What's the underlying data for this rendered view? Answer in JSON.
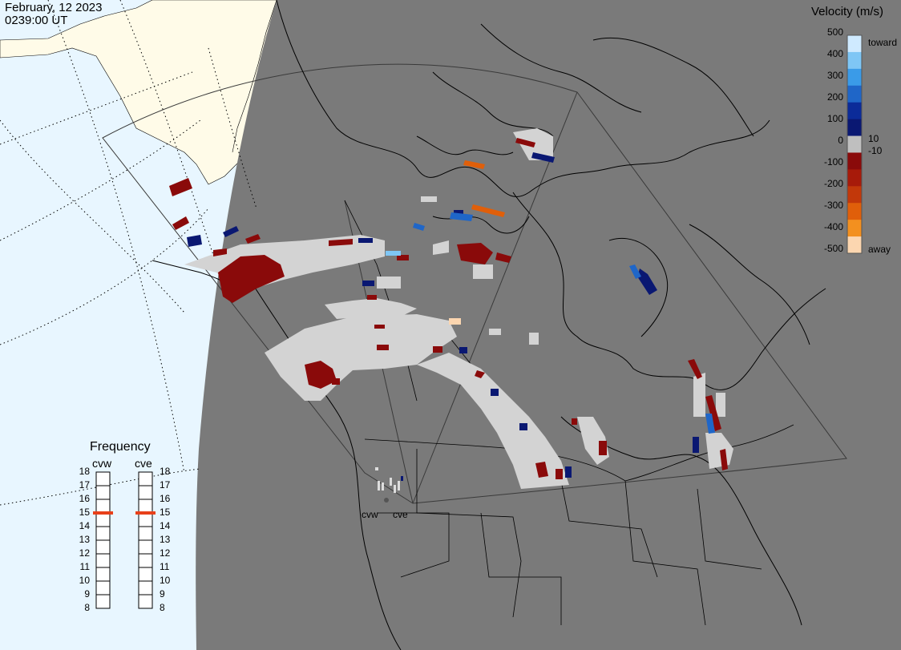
{
  "header": {
    "date": "February, 12 2023",
    "time": "0239:00 UT"
  },
  "colorbar": {
    "title": "Velocity (m/s)",
    "ticks": [
      "500",
      "400",
      "300",
      "200",
      "100",
      "0",
      "-100",
      "-200",
      "-300",
      "-400",
      "-500"
    ],
    "label_10": "10",
    "label_neg10": "-10",
    "toward_label": "toward",
    "away_label": "away",
    "colors_top_to_bottom": [
      "#cfeaff",
      "#7fc6f5",
      "#3a9be8",
      "#1f66c8",
      "#0b2b99",
      "#0a1872",
      "#bfbfbf",
      "#8a0a0a",
      "#a71a0a",
      "#c2380a",
      "#e05f0a",
      "#f3901f",
      "#fcd6b0"
    ]
  },
  "frequency": {
    "title": "Frequency",
    "radars": [
      {
        "name": "cvw",
        "freq_mhz": 15
      },
      {
        "name": "cve",
        "freq_mhz": 15
      }
    ],
    "scale": [
      "18",
      "17",
      "16",
      "15",
      "14",
      "13",
      "12",
      "11",
      "10",
      "9",
      "8"
    ],
    "marker_color": "#e8401a"
  },
  "radar_site_labels": [
    "cvw",
    "cve"
  ],
  "colors": {
    "ocean_day": "#e8f6ff",
    "land_day": "#fffbe8",
    "night": "#7a7a7a",
    "gs_scatter": "#d3d3d3",
    "coast": "#000000"
  }
}
